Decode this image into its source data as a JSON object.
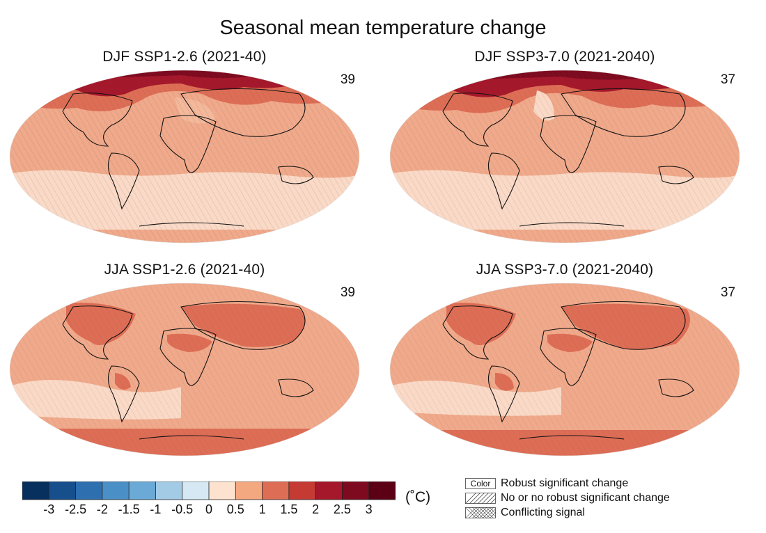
{
  "title": "Seasonal mean temperature change",
  "panels": [
    {
      "title": "DJF SSP1-2.6 (2021-40)",
      "count": "39"
    },
    {
      "title": "DJF SSP3-7.0 (2021-2040)",
      "count": "37"
    },
    {
      "title": "JJA SSP1-2.6 (2021-40)",
      "count": "39"
    },
    {
      "title": "JJA SSP3-7.0 (2021-2040)",
      "count": "37"
    }
  ],
  "colorbar": {
    "unit": "(˚C)",
    "ticks": [
      "-3",
      "-2.5",
      "-2",
      "-1.5",
      "-1",
      "-0.5",
      "0",
      "0.5",
      "1",
      "1.5",
      "2",
      "2.5",
      "3"
    ],
    "colors": [
      "#08305e",
      "#174f8d",
      "#2e6fb0",
      "#4a8fc6",
      "#6baad7",
      "#a3cbe6",
      "#d6e8f3",
      "#fde2d0",
      "#f4a880",
      "#de6d55",
      "#c53a33",
      "#a5172a",
      "#7e0a1f",
      "#5c0016"
    ]
  },
  "legend": {
    "color_box": "Color",
    "robust": "Robust significant change",
    "no_robust": "No or no robust significant change",
    "conflicting": "Conflicting signal"
  }
}
